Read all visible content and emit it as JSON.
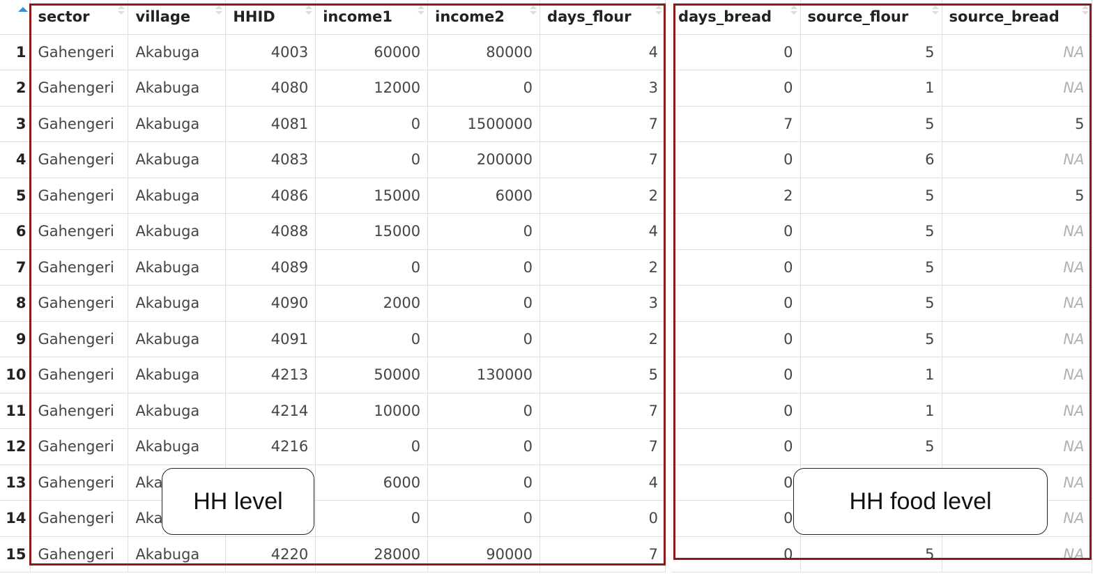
{
  "left_table": {
    "columns": [
      "sector",
      "village",
      "HHID",
      "income1",
      "income2",
      "days_flour"
    ],
    "rows": [
      [
        "1",
        "Gahengeri",
        "Akabuga",
        "4003",
        "60000",
        "80000",
        "4"
      ],
      [
        "2",
        "Gahengeri",
        "Akabuga",
        "4080",
        "12000",
        "0",
        "3"
      ],
      [
        "3",
        "Gahengeri",
        "Akabuga",
        "4081",
        "0",
        "1500000",
        "7"
      ],
      [
        "4",
        "Gahengeri",
        "Akabuga",
        "4083",
        "0",
        "200000",
        "7"
      ],
      [
        "5",
        "Gahengeri",
        "Akabuga",
        "4086",
        "15000",
        "6000",
        "2"
      ],
      [
        "6",
        "Gahengeri",
        "Akabuga",
        "4088",
        "15000",
        "0",
        "4"
      ],
      [
        "7",
        "Gahengeri",
        "Akabuga",
        "4089",
        "0",
        "0",
        "2"
      ],
      [
        "8",
        "Gahengeri",
        "Akabuga",
        "4090",
        "2000",
        "0",
        "3"
      ],
      [
        "9",
        "Gahengeri",
        "Akabuga",
        "4091",
        "0",
        "0",
        "2"
      ],
      [
        "10",
        "Gahengeri",
        "Akabuga",
        "4213",
        "50000",
        "130000",
        "5"
      ],
      [
        "11",
        "Gahengeri",
        "Akabuga",
        "4214",
        "10000",
        "0",
        "7"
      ],
      [
        "12",
        "Gahengeri",
        "Akabuga",
        "4216",
        "0",
        "0",
        "7"
      ],
      [
        "13",
        "Gahengeri",
        "Akabuga",
        "",
        "6000",
        "0",
        "4"
      ],
      [
        "14",
        "Gahengeri",
        "Akabuga",
        "",
        "0",
        "0",
        "0"
      ],
      [
        "15",
        "Gahengeri",
        "Akabuga",
        "4220",
        "28000",
        "90000",
        "7"
      ]
    ]
  },
  "right_table": {
    "columns": [
      "days_bread",
      "source_flour",
      "source_bread"
    ],
    "rows": [
      [
        "0",
        "5",
        "NA"
      ],
      [
        "0",
        "1",
        "NA"
      ],
      [
        "7",
        "5",
        "5"
      ],
      [
        "0",
        "6",
        "NA"
      ],
      [
        "2",
        "5",
        "5"
      ],
      [
        "0",
        "5",
        "NA"
      ],
      [
        "0",
        "5",
        "NA"
      ],
      [
        "0",
        "5",
        "NA"
      ],
      [
        "0",
        "5",
        "NA"
      ],
      [
        "0",
        "1",
        "NA"
      ],
      [
        "0",
        "1",
        "NA"
      ],
      [
        "0",
        "5",
        "NA"
      ],
      [
        "0",
        "",
        "NA"
      ],
      [
        "0",
        "",
        "NA"
      ],
      [
        "0",
        "5",
        "NA"
      ]
    ]
  },
  "callouts": {
    "left_label": "HH level",
    "right_label": "HH food level"
  },
  "colors": {
    "frame": "#8b1a1a",
    "sort_active": "#3a8fd6",
    "na_text": "#b0b0b0"
  }
}
